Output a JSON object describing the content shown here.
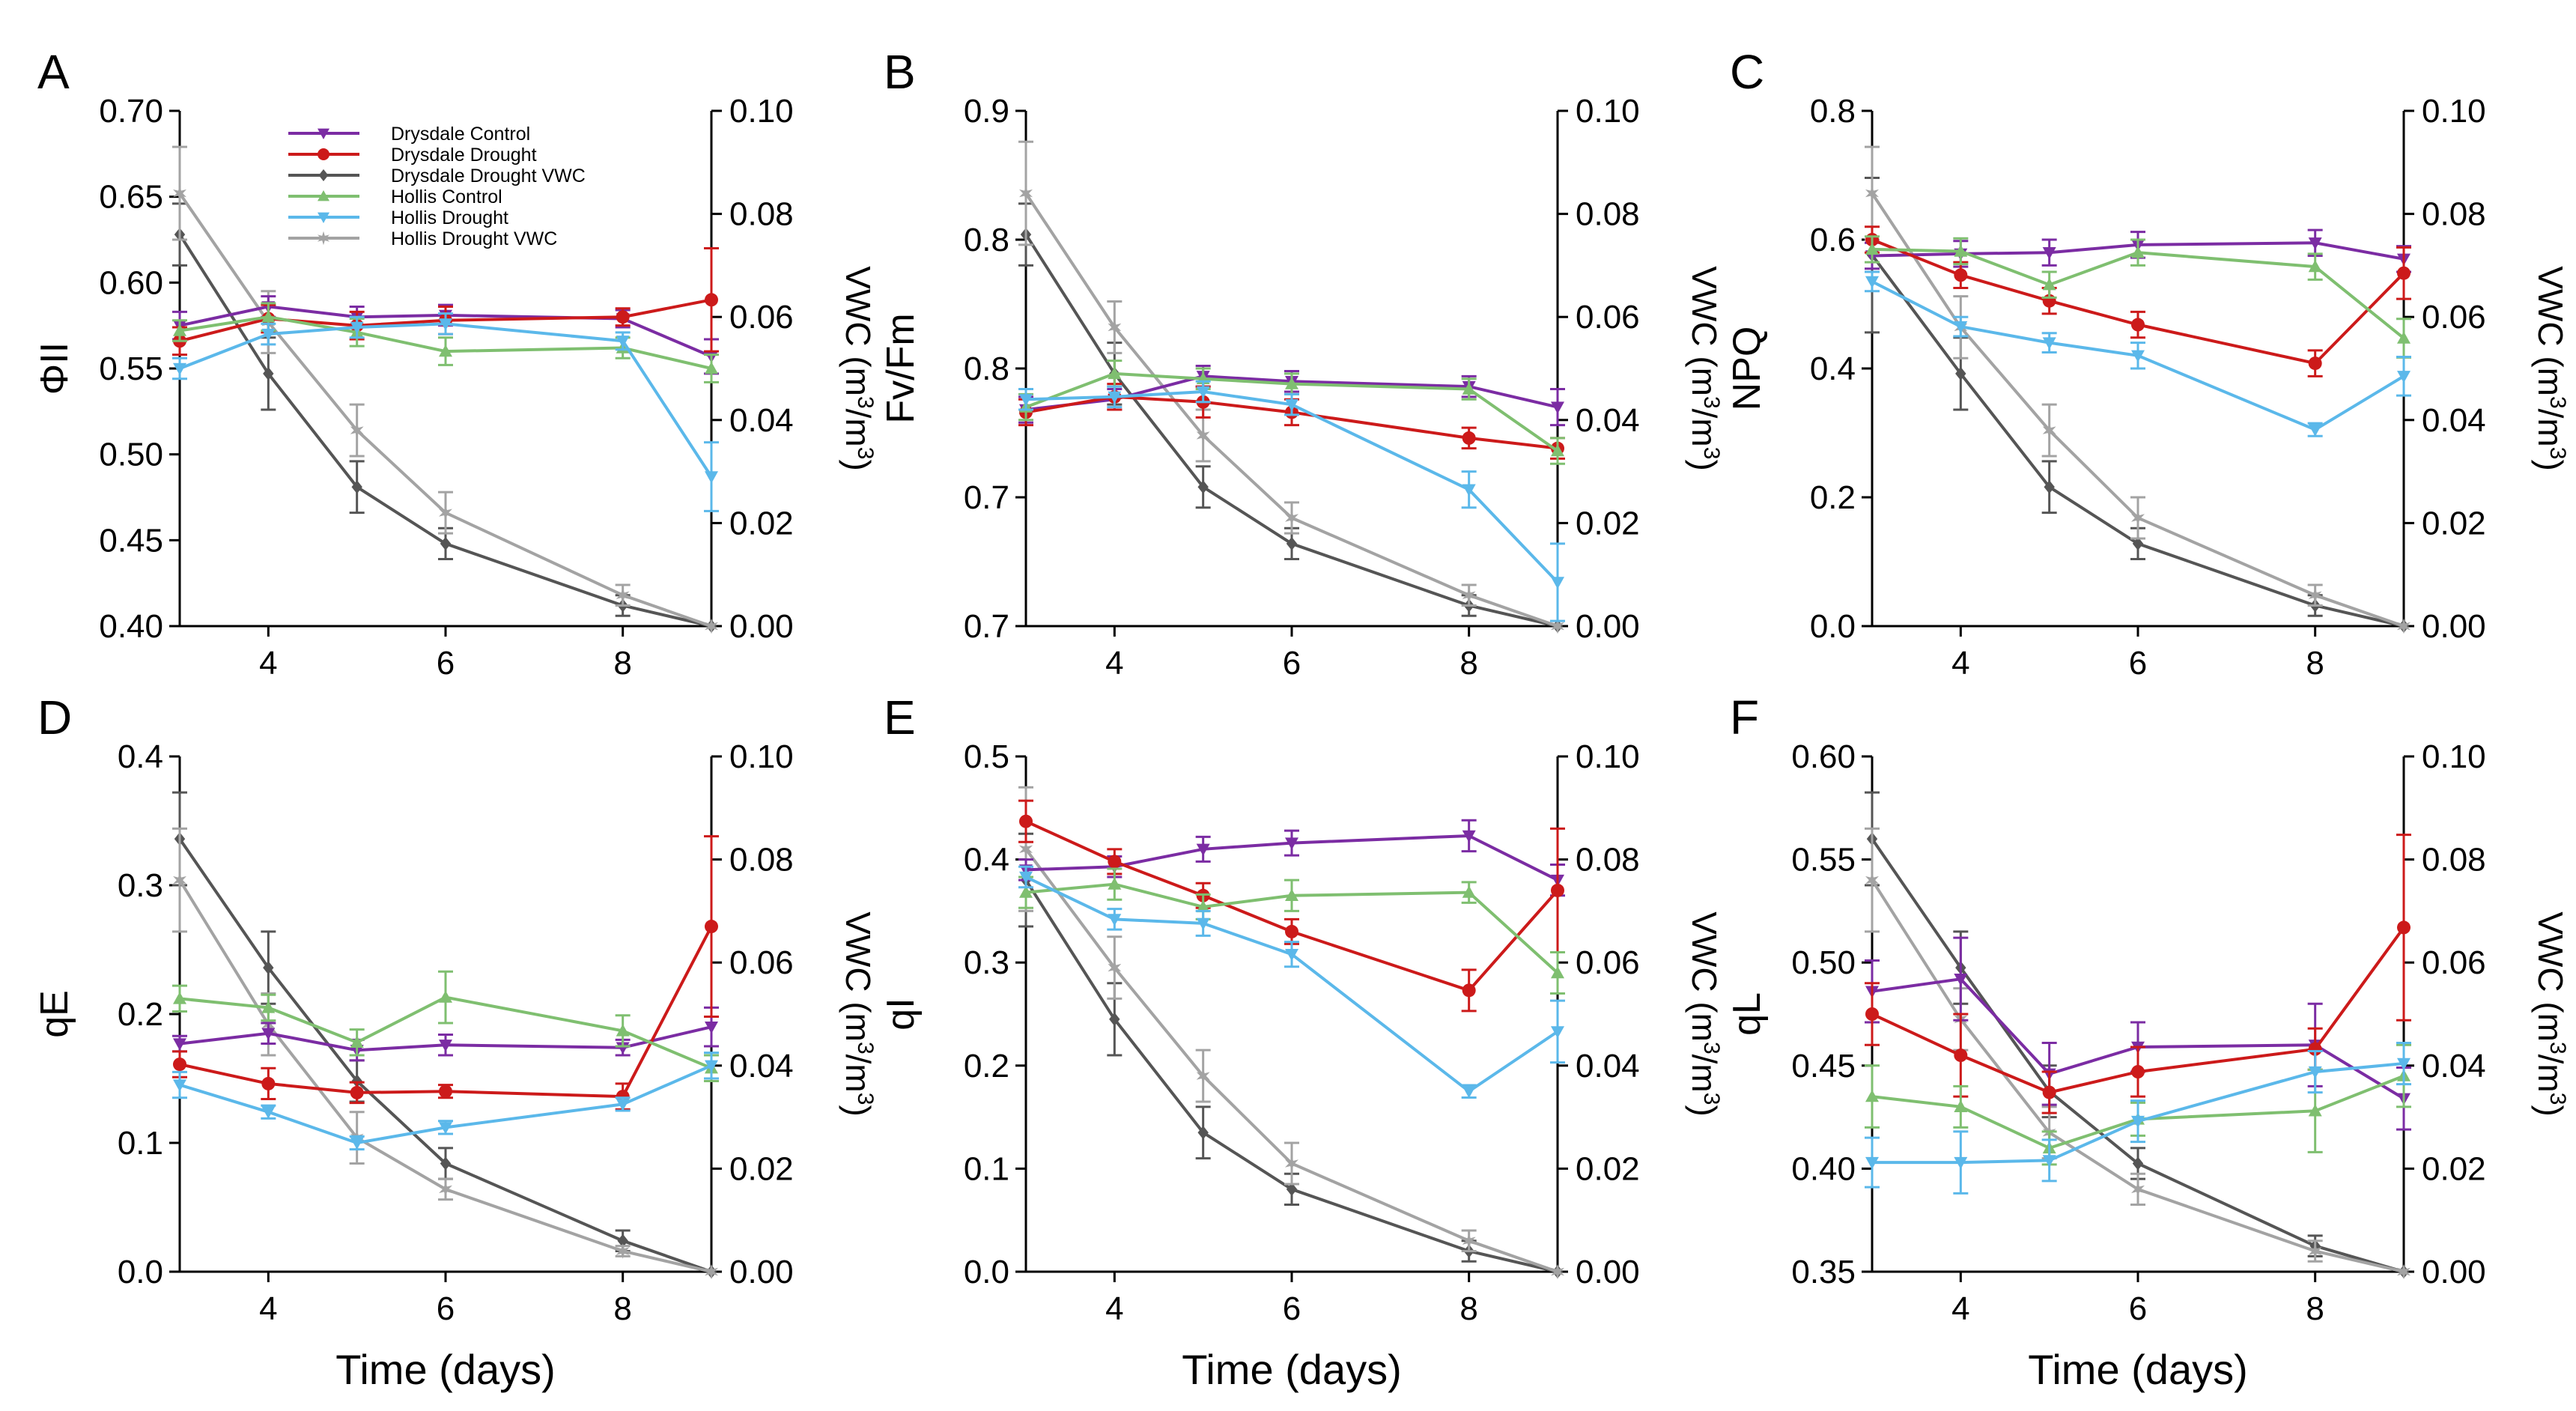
{
  "figure": {
    "xlabel": "Time (days)",
    "y2label_prefix": "VWC (m",
    "y2label_mid": "/m",
    "y2label_suffix": ")",
    "y2label_sup": "3"
  },
  "legend": {
    "entries": [
      {
        "label": "Drysdale Control",
        "color": "#7b2ca3",
        "marker": "triangle-down"
      },
      {
        "label": "Drysdale Drought",
        "color": "#cc1a1a",
        "marker": "circle"
      },
      {
        "label": "Drysdale Drought VWC",
        "color": "#555555",
        "marker": "diamond"
      },
      {
        "label": "Hollis Control",
        "color": "#7fbf70",
        "marker": "triangle-up"
      },
      {
        "label": "Hollis Drought",
        "color": "#5bb8ea",
        "marker": "triangle-down"
      },
      {
        "label": "Hollis Drought VWC",
        "color": "#a3a3a3",
        "marker": "star"
      }
    ]
  },
  "chart_data": [
    {
      "panel": "A",
      "type": "line",
      "ylabel": "ΦII",
      "x": [
        3,
        4,
        5,
        6,
        8,
        9
      ],
      "xticks": [
        "4",
        "6",
        "8"
      ],
      "ylim": [
        0.4,
        0.7
      ],
      "yticks": [
        "0.40",
        "0.45",
        "0.50",
        "0.55",
        "0.60",
        "0.65",
        "0.70"
      ],
      "y2lim": [
        0.0,
        0.1
      ],
      "y2ticks": [
        "0.00",
        "0.02",
        "0.04",
        "0.06",
        "0.08",
        "0.10"
      ],
      "series": [
        {
          "name": "Drysdale Control",
          "axis": "left",
          "values": [
            0.575,
            0.586,
            0.58,
            0.581,
            0.579,
            0.557
          ],
          "err": [
            0.008,
            0.006,
            0.006,
            0.006,
            0.005,
            0.01
          ]
        },
        {
          "name": "Drysdale Drought",
          "axis": "left",
          "values": [
            0.566,
            0.579,
            0.575,
            0.578,
            0.58,
            0.59
          ],
          "err": [
            0.008,
            0.008,
            0.008,
            0.008,
            0.005,
            0.03
          ]
        },
        {
          "name": "Hollis Control",
          "axis": "left",
          "values": [
            0.572,
            0.58,
            0.571,
            0.56,
            0.562,
            0.55
          ],
          "err": [
            0.006,
            0.008,
            0.008,
            0.008,
            0.006,
            0.008
          ]
        },
        {
          "name": "Hollis Drought",
          "axis": "left",
          "values": [
            0.55,
            0.57,
            0.574,
            0.576,
            0.566,
            0.487
          ],
          "err": [
            0.006,
            0.006,
            0.006,
            0.006,
            0.005,
            0.02
          ]
        },
        {
          "name": "Drysdale Drought VWC",
          "axis": "right",
          "values": [
            0.076,
            0.049,
            0.027,
            0.016,
            0.004,
            0.0
          ],
          "err": [
            0.006,
            0.007,
            0.005,
            0.003,
            0.002,
            0.0
          ]
        },
        {
          "name": "Hollis Drought VWC",
          "axis": "right",
          "values": [
            0.084,
            0.059,
            0.038,
            0.022,
            0.006,
            0.0
          ],
          "err": [
            0.009,
            0.006,
            0.005,
            0.004,
            0.002,
            0.0
          ]
        }
      ]
    },
    {
      "panel": "B",
      "type": "line",
      "ylabel": "Fv/Fm",
      "x": [
        3,
        4,
        5,
        6,
        8,
        9
      ],
      "xticks": [
        "4",
        "6",
        "8"
      ],
      "ylim": [
        0.7,
        0.9
      ],
      "yticks": [
        "0.7",
        "0.7",
        "0.8",
        "0.8",
        "0.9"
      ],
      "y2lim": [
        0.0,
        0.1
      ],
      "y2ticks": [
        "0.00",
        "0.02",
        "0.04",
        "0.06",
        "0.08",
        "0.10"
      ],
      "series": [
        {
          "name": "Drysdale Control",
          "axis": "left",
          "values": [
            0.784,
            0.788,
            0.797,
            0.795,
            0.793,
            0.785
          ],
          "err": [
            0.005,
            0.004,
            0.004,
            0.004,
            0.004,
            0.007
          ]
        },
        {
          "name": "Drysdale Drought",
          "axis": "left",
          "values": [
            0.783,
            0.789,
            0.787,
            0.783,
            0.773,
            0.769
          ],
          "err": [
            0.005,
            0.005,
            0.006,
            0.005,
            0.004,
            0.004
          ]
        },
        {
          "name": "Hollis Control",
          "axis": "left",
          "values": [
            0.785,
            0.798,
            0.796,
            0.794,
            0.792,
            0.768
          ],
          "err": [
            0.005,
            0.005,
            0.004,
            0.004,
            0.004,
            0.005
          ]
        },
        {
          "name": "Hollis Drought",
          "axis": "left",
          "values": [
            0.788,
            0.789,
            0.791,
            0.786,
            0.753,
            0.717
          ],
          "err": [
            0.004,
            0.004,
            0.004,
            0.004,
            0.007,
            0.015
          ]
        },
        {
          "name": "Drysdale Drought VWC",
          "axis": "right",
          "values": [
            0.076,
            0.049,
            0.027,
            0.016,
            0.004,
            0.0
          ],
          "err": [
            0.006,
            0.006,
            0.004,
            0.003,
            0.002,
            0.0
          ]
        },
        {
          "name": "Hollis Drought VWC",
          "axis": "right",
          "values": [
            0.084,
            0.058,
            0.037,
            0.021,
            0.006,
            0.0
          ],
          "err": [
            0.01,
            0.005,
            0.005,
            0.003,
            0.002,
            0.0
          ]
        }
      ]
    },
    {
      "panel": "C",
      "type": "line",
      "ylabel": "NPQ",
      "x": [
        3,
        4,
        5,
        6,
        8,
        9
      ],
      "xticks": [
        "4",
        "6",
        "8"
      ],
      "ylim": [
        0.0,
        0.8
      ],
      "yticks": [
        "0.0",
        "0.2",
        "0.4",
        "0.6",
        "0.8"
      ],
      "y2lim": [
        0.0,
        0.1
      ],
      "y2ticks": [
        "0.00",
        "0.02",
        "0.04",
        "0.06",
        "0.08",
        "0.10"
      ],
      "series": [
        {
          "name": "Drysdale Control",
          "axis": "left",
          "values": [
            0.575,
            0.578,
            0.58,
            0.592,
            0.595,
            0.57
          ],
          "err": [
            0.02,
            0.02,
            0.02,
            0.02,
            0.02,
            0.02
          ]
        },
        {
          "name": "Drysdale Drought",
          "axis": "left",
          "values": [
            0.6,
            0.545,
            0.505,
            0.468,
            0.408,
            0.548
          ],
          "err": [
            0.02,
            0.02,
            0.02,
            0.02,
            0.02,
            0.04
          ]
        },
        {
          "name": "Hollis Control",
          "axis": "left",
          "values": [
            0.585,
            0.582,
            0.53,
            0.58,
            0.558,
            0.447
          ],
          "err": [
            0.02,
            0.02,
            0.02,
            0.02,
            0.02,
            0.03
          ]
        },
        {
          "name": "Hollis Drought",
          "axis": "left",
          "values": [
            0.535,
            0.465,
            0.44,
            0.42,
            0.305,
            0.388
          ],
          "err": [
            0.015,
            0.015,
            0.015,
            0.02,
            0.01,
            0.03
          ]
        },
        {
          "name": "Drysdale Drought VWC",
          "axis": "right",
          "values": [
            0.072,
            0.049,
            0.027,
            0.016,
            0.004,
            0.0
          ],
          "err": [
            0.015,
            0.007,
            0.005,
            0.003,
            0.002,
            0.0
          ]
        },
        {
          "name": "Hollis Drought VWC",
          "axis": "right",
          "values": [
            0.084,
            0.058,
            0.038,
            0.021,
            0.006,
            0.0
          ],
          "err": [
            0.009,
            0.006,
            0.005,
            0.004,
            0.002,
            0.0
          ]
        }
      ]
    },
    {
      "panel": "D",
      "type": "line",
      "ylabel": "qE",
      "x": [
        3,
        4,
        5,
        6,
        8,
        9
      ],
      "xticks": [
        "4",
        "6",
        "8"
      ],
      "ylim": [
        0.0,
        0.4
      ],
      "yticks": [
        "0.0",
        "0.1",
        "0.2",
        "0.3",
        "0.4"
      ],
      "y2lim": [
        0.0,
        0.1
      ],
      "y2ticks": [
        "0.00",
        "0.02",
        "0.04",
        "0.06",
        "0.08",
        "0.10"
      ],
      "series": [
        {
          "name": "Drysdale Control",
          "axis": "left",
          "values": [
            0.177,
            0.185,
            0.172,
            0.176,
            0.174,
            0.19
          ],
          "err": [
            0.006,
            0.008,
            0.008,
            0.008,
            0.006,
            0.015
          ]
        },
        {
          "name": "Drysdale Drought",
          "axis": "left",
          "values": [
            0.161,
            0.146,
            0.139,
            0.14,
            0.136,
            0.268
          ],
          "err": [
            0.01,
            0.012,
            0.008,
            0.005,
            0.01,
            0.07
          ]
        },
        {
          "name": "Hollis Control",
          "axis": "left",
          "values": [
            0.212,
            0.205,
            0.178,
            0.213,
            0.187,
            0.158
          ],
          "err": [
            0.01,
            0.01,
            0.01,
            0.02,
            0.012,
            0.01
          ]
        },
        {
          "name": "Hollis Drought",
          "axis": "left",
          "values": [
            0.145,
            0.124,
            0.1,
            0.112,
            0.13,
            0.16
          ],
          "err": [
            0.01,
            0.005,
            0.005,
            0.005,
            0.005,
            0.01
          ]
        },
        {
          "name": "Drysdale Drought VWC",
          "axis": "right",
          "values": [
            0.084,
            0.059,
            0.037,
            0.021,
            0.006,
            0.0
          ],
          "err": [
            0.009,
            0.007,
            0.004,
            0.003,
            0.002,
            0.0
          ]
        },
        {
          "name": "Hollis Drought VWC",
          "axis": "right",
          "values": [
            0.076,
            0.048,
            0.026,
            0.016,
            0.004,
            0.0
          ],
          "err": [
            0.01,
            0.006,
            0.005,
            0.002,
            0.001,
            0.0
          ]
        }
      ]
    },
    {
      "panel": "E",
      "type": "line",
      "ylabel": "qI",
      "x": [
        3,
        4,
        5,
        6,
        8,
        9
      ],
      "xticks": [
        "4",
        "6",
        "8"
      ],
      "ylim": [
        0.0,
        0.5
      ],
      "yticks": [
        "0.0",
        "0.1",
        "0.2",
        "0.3",
        "0.4",
        "0.5"
      ],
      "y2lim": [
        0.0,
        0.1
      ],
      "y2ticks": [
        "0.00",
        "0.02",
        "0.04",
        "0.06",
        "0.08",
        "0.10"
      ],
      "series": [
        {
          "name": "Drysdale Control",
          "axis": "left",
          "values": [
            0.39,
            0.393,
            0.41,
            0.416,
            0.423,
            0.38
          ],
          "err": [
            0.01,
            0.01,
            0.012,
            0.012,
            0.015,
            0.015
          ]
        },
        {
          "name": "Drysdale Drought",
          "axis": "left",
          "values": [
            0.437,
            0.398,
            0.365,
            0.33,
            0.273,
            0.37
          ],
          "err": [
            0.02,
            0.012,
            0.012,
            0.012,
            0.02,
            0.06
          ]
        },
        {
          "name": "Hollis Control",
          "axis": "left",
          "values": [
            0.368,
            0.376,
            0.354,
            0.365,
            0.368,
            0.29
          ],
          "err": [
            0.015,
            0.015,
            0.012,
            0.015,
            0.01,
            0.02
          ]
        },
        {
          "name": "Hollis Drought",
          "axis": "left",
          "values": [
            0.383,
            0.342,
            0.338,
            0.308,
            0.175,
            0.233
          ],
          "err": [
            0.01,
            0.01,
            0.012,
            0.012,
            0.006,
            0.03
          ]
        },
        {
          "name": "Drysdale Drought VWC",
          "axis": "right",
          "values": [
            0.076,
            0.049,
            0.027,
            0.016,
            0.004,
            0.0
          ],
          "err": [
            0.009,
            0.007,
            0.005,
            0.003,
            0.002,
            0.0
          ]
        },
        {
          "name": "Hollis Drought VWC",
          "axis": "right",
          "values": [
            0.082,
            0.059,
            0.038,
            0.021,
            0.006,
            0.0
          ],
          "err": [
            0.012,
            0.006,
            0.005,
            0.004,
            0.002,
            0.0
          ]
        }
      ]
    },
    {
      "panel": "F",
      "type": "line",
      "ylabel": "qL",
      "x": [
        3,
        4,
        5,
        6,
        8,
        9
      ],
      "xticks": [
        "4",
        "6",
        "8"
      ],
      "ylim": [
        0.35,
        0.6
      ],
      "yticks": [
        "0.35",
        "0.40",
        "0.45",
        "0.50",
        "0.55",
        "0.60"
      ],
      "y2lim": [
        0.0,
        0.1
      ],
      "y2ticks": [
        "0.00",
        "0.02",
        "0.04",
        "0.06",
        "0.08",
        "0.10"
      ],
      "series": [
        {
          "name": "Drysdale Control",
          "axis": "left",
          "values": [
            0.486,
            0.492,
            0.446,
            0.459,
            0.46,
            0.434
          ],
          "err": [
            0.015,
            0.02,
            0.015,
            0.012,
            0.02,
            0.015
          ]
        },
        {
          "name": "Drysdale Drought",
          "axis": "left",
          "values": [
            0.475,
            0.455,
            0.437,
            0.447,
            0.458,
            0.517
          ],
          "err": [
            0.015,
            0.02,
            0.01,
            0.012,
            0.01,
            0.045
          ]
        },
        {
          "name": "Hollis Control",
          "axis": "left",
          "values": [
            0.435,
            0.43,
            0.41,
            0.424,
            0.428,
            0.445
          ],
          "err": [
            0.015,
            0.01,
            0.008,
            0.008,
            0.02,
            0.015
          ]
        },
        {
          "name": "Hollis Drought",
          "axis": "left",
          "values": [
            0.403,
            0.403,
            0.404,
            0.423,
            0.447,
            0.451
          ],
          "err": [
            0.012,
            0.015,
            0.01,
            0.01,
            0.01,
            0.01
          ]
        },
        {
          "name": "Drysdale Drought VWC",
          "axis": "right",
          "values": [
            0.084,
            0.059,
            0.035,
            0.021,
            0.005,
            0.0
          ],
          "err": [
            0.009,
            0.007,
            0.005,
            0.003,
            0.002,
            0.0
          ]
        },
        {
          "name": "Hollis Drought VWC",
          "axis": "right",
          "values": [
            0.076,
            0.049,
            0.027,
            0.016,
            0.004,
            0.0
          ],
          "err": [
            0.01,
            0.006,
            0.005,
            0.003,
            0.002,
            0.0
          ]
        }
      ]
    }
  ]
}
